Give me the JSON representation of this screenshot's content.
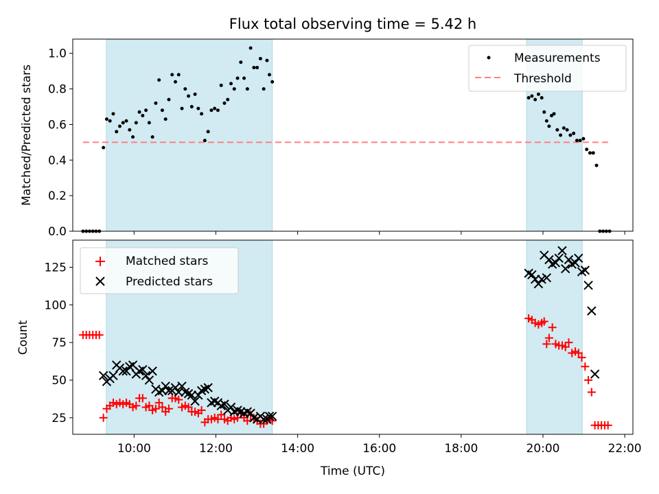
{
  "title": "Flux total observing time = 5.42 h",
  "xlabel": "Time (UTC)",
  "xticks": [
    "10:00",
    "12:00",
    "14:00",
    "16:00",
    "18:00",
    "20:00",
    "22:00"
  ],
  "colors": {
    "band": "#add8e6",
    "threshold": "#ff7f7f",
    "matched": "#ff0000",
    "predicted": "#000000",
    "measurements": "#000000"
  },
  "chart_data": [
    {
      "type": "scatter",
      "ylabel": "Matched/Predicted stars",
      "xlim": [
        8.5,
        22.2
      ],
      "ylim": [
        0,
        1.08
      ],
      "yticks": [
        "0.0",
        "0.2",
        "0.4",
        "0.6",
        "0.8",
        "1.0"
      ],
      "shaded_intervals": [
        [
          9.32,
          13.38
        ],
        [
          19.6,
          20.96
        ]
      ],
      "threshold": {
        "name": "Threshold",
        "y": 0.5,
        "x_range": [
          8.75,
          21.65
        ]
      },
      "legend": {
        "position": "upper right",
        "entries": [
          "Measurements",
          "Threshold"
        ]
      },
      "series": [
        {
          "name": "Measurements",
          "points": [
            [
              8.75,
              0
            ],
            [
              8.83,
              0
            ],
            [
              8.91,
              0
            ],
            [
              8.99,
              0
            ],
            [
              9.07,
              0
            ],
            [
              9.15,
              0
            ],
            [
              9.25,
              0.47
            ],
            [
              9.33,
              0.63
            ],
            [
              9.41,
              0.62
            ],
            [
              9.49,
              0.66
            ],
            [
              9.57,
              0.56
            ],
            [
              9.65,
              0.59
            ],
            [
              9.73,
              0.61
            ],
            [
              9.81,
              0.62
            ],
            [
              9.89,
              0.57
            ],
            [
              9.97,
              0.53
            ],
            [
              10.05,
              0.61
            ],
            [
              10.13,
              0.67
            ],
            [
              10.21,
              0.65
            ],
            [
              10.29,
              0.68
            ],
            [
              10.37,
              0.61
            ],
            [
              10.45,
              0.53
            ],
            [
              10.53,
              0.72
            ],
            [
              10.61,
              0.85
            ],
            [
              10.69,
              0.68
            ],
            [
              10.77,
              0.63
            ],
            [
              10.85,
              0.74
            ],
            [
              10.93,
              0.88
            ],
            [
              11.01,
              0.84
            ],
            [
              11.09,
              0.88
            ],
            [
              11.17,
              0.69
            ],
            [
              11.25,
              0.8
            ],
            [
              11.33,
              0.76
            ],
            [
              11.41,
              0.7
            ],
            [
              11.49,
              0.77
            ],
            [
              11.57,
              0.69
            ],
            [
              11.65,
              0.66
            ],
            [
              11.73,
              0.51
            ],
            [
              11.81,
              0.56
            ],
            [
              11.89,
              0.68
            ],
            [
              11.97,
              0.69
            ],
            [
              12.05,
              0.68
            ],
            [
              12.13,
              0.82
            ],
            [
              12.21,
              0.72
            ],
            [
              12.29,
              0.74
            ],
            [
              12.37,
              0.83
            ],
            [
              12.45,
              0.8
            ],
            [
              12.53,
              0.86
            ],
            [
              12.61,
              0.95
            ],
            [
              12.69,
              0.86
            ],
            [
              12.77,
              0.8
            ],
            [
              12.85,
              1.03
            ],
            [
              12.93,
              0.92
            ],
            [
              13.01,
              0.92
            ],
            [
              13.09,
              0.97
            ],
            [
              13.17,
              0.8
            ],
            [
              13.25,
              0.96
            ],
            [
              13.31,
              0.88
            ],
            [
              13.38,
              0.84
            ],
            [
              19.65,
              0.75
            ],
            [
              19.73,
              0.76
            ],
            [
              19.81,
              0.74
            ],
            [
              19.89,
              0.77
            ],
            [
              19.97,
              0.75
            ],
            [
              20.03,
              0.67
            ],
            [
              20.09,
              0.62
            ],
            [
              20.15,
              0.59
            ],
            [
              20.21,
              0.65
            ],
            [
              20.27,
              0.66
            ],
            [
              20.35,
              0.57
            ],
            [
              20.43,
              0.54
            ],
            [
              20.51,
              0.58
            ],
            [
              20.59,
              0.57
            ],
            [
              20.67,
              0.54
            ],
            [
              20.75,
              0.55
            ],
            [
              20.83,
              0.51
            ],
            [
              20.91,
              0.51
            ],
            [
              20.99,
              0.52
            ],
            [
              21.07,
              0.46
            ],
            [
              21.15,
              0.44
            ],
            [
              21.23,
              0.44
            ],
            [
              21.31,
              0.37
            ],
            [
              21.39,
              0
            ],
            [
              21.47,
              0
            ],
            [
              21.55,
              0
            ],
            [
              21.63,
              0
            ]
          ]
        }
      ]
    },
    {
      "type": "scatter",
      "ylabel": "Count",
      "xlim": [
        8.5,
        22.2
      ],
      "ylim": [
        14,
        143
      ],
      "yticks": [
        "25",
        "50",
        "75",
        "100",
        "125"
      ],
      "shaded_intervals": [
        [
          9.32,
          13.38
        ],
        [
          19.6,
          20.96
        ]
      ],
      "legend": {
        "position": "upper left",
        "entries": [
          "Matched stars",
          "Predicted stars"
        ]
      },
      "series": [
        {
          "name": "Matched stars",
          "marker": "plus",
          "points": [
            [
              8.75,
              80
            ],
            [
              8.83,
              80
            ],
            [
              8.91,
              80
            ],
            [
              8.99,
              80
            ],
            [
              9.07,
              80
            ],
            [
              9.15,
              80
            ],
            [
              9.25,
              25
            ],
            [
              9.33,
              31
            ],
            [
              9.41,
              33
            ],
            [
              9.49,
              35
            ],
            [
              9.57,
              34
            ],
            [
              9.65,
              35
            ],
            [
              9.73,
              34
            ],
            [
              9.81,
              35
            ],
            [
              9.89,
              34
            ],
            [
              9.97,
              32
            ],
            [
              10.05,
              33
            ],
            [
              10.13,
              38
            ],
            [
              10.21,
              38
            ],
            [
              10.29,
              32
            ],
            [
              10.37,
              33
            ],
            [
              10.45,
              30
            ],
            [
              10.53,
              31
            ],
            [
              10.61,
              35
            ],
            [
              10.69,
              32
            ],
            [
              10.77,
              29
            ],
            [
              10.85,
              31
            ],
            [
              10.93,
              38
            ],
            [
              11.01,
              38
            ],
            [
              11.09,
              37
            ],
            [
              11.17,
              32
            ],
            [
              11.25,
              33
            ],
            [
              11.33,
              32
            ],
            [
              11.41,
              29
            ],
            [
              11.49,
              29
            ],
            [
              11.57,
              28
            ],
            [
              11.65,
              30
            ],
            [
              11.73,
              22
            ],
            [
              11.81,
              24
            ],
            [
              11.89,
              24
            ],
            [
              11.97,
              25
            ],
            [
              12.05,
              24
            ],
            [
              12.13,
              27
            ],
            [
              12.21,
              24
            ],
            [
              12.29,
              23
            ],
            [
              12.37,
              25
            ],
            [
              12.45,
              24
            ],
            [
              12.53,
              25
            ],
            [
              12.61,
              28
            ],
            [
              12.69,
              25
            ],
            [
              12.77,
              23
            ],
            [
              12.85,
              27
            ],
            [
              12.93,
              24
            ],
            [
              13.01,
              23
            ],
            [
              13.09,
              21
            ],
            [
              13.17,
              21
            ],
            [
              13.25,
              23
            ],
            [
              13.31,
              24
            ],
            [
              13.38,
              23
            ],
            [
              19.65,
              91
            ],
            [
              19.73,
              90
            ],
            [
              19.81,
              88
            ],
            [
              19.89,
              87
            ],
            [
              19.97,
              88
            ],
            [
              20.03,
              89
            ],
            [
              20.09,
              74
            ],
            [
              20.15,
              78
            ],
            [
              20.23,
              85
            ],
            [
              20.31,
              74
            ],
            [
              20.39,
              73
            ],
            [
              20.47,
              73
            ],
            [
              20.55,
              72
            ],
            [
              20.63,
              75
            ],
            [
              20.71,
              68
            ],
            [
              20.79,
              69
            ],
            [
              20.87,
              68
            ],
            [
              20.95,
              65
            ],
            [
              21.03,
              59
            ],
            [
              21.11,
              50
            ],
            [
              21.19,
              42
            ],
            [
              21.27,
              20
            ],
            [
              21.35,
              20
            ],
            [
              21.43,
              20
            ],
            [
              21.51,
              20
            ],
            [
              21.59,
              20
            ]
          ]
        },
        {
          "name": "Predicted stars",
          "marker": "x",
          "points": [
            [
              9.25,
              53
            ],
            [
              9.33,
              49
            ],
            [
              9.41,
              51
            ],
            [
              9.49,
              53
            ],
            [
              9.57,
              60
            ],
            [
              9.65,
              58
            ],
            [
              9.73,
              56
            ],
            [
              9.81,
              56
            ],
            [
              9.89,
              59
            ],
            [
              9.97,
              60
            ],
            [
              10.05,
              54
            ],
            [
              10.13,
              56
            ],
            [
              10.21,
              57
            ],
            [
              10.29,
              53
            ],
            [
              10.37,
              50
            ],
            [
              10.45,
              56
            ],
            [
              10.53,
              44
            ],
            [
              10.61,
              42
            ],
            [
              10.69,
              43
            ],
            [
              10.77,
              46
            ],
            [
              10.85,
              43
            ],
            [
              10.93,
              43
            ],
            [
              11.01,
              45
            ],
            [
              11.09,
              42
            ],
            [
              11.17,
              46
            ],
            [
              11.25,
              42
            ],
            [
              11.33,
              41
            ],
            [
              11.41,
              40
            ],
            [
              11.49,
              36
            ],
            [
              11.57,
              40
            ],
            [
              11.65,
              43
            ],
            [
              11.73,
              44
            ],
            [
              11.81,
              45
            ],
            [
              11.89,
              35
            ],
            [
              11.97,
              36
            ],
            [
              12.05,
              35
            ],
            [
              12.13,
              33
            ],
            [
              12.21,
              34
            ],
            [
              12.29,
              30
            ],
            [
              12.37,
              32
            ],
            [
              12.45,
              29
            ],
            [
              12.53,
              30
            ],
            [
              12.61,
              29
            ],
            [
              12.69,
              28
            ],
            [
              12.77,
              29
            ],
            [
              12.85,
              28
            ],
            [
              12.93,
              25
            ],
            [
              13.01,
              24
            ],
            [
              13.09,
              26
            ],
            [
              13.17,
              24
            ],
            [
              13.25,
              24
            ],
            [
              13.31,
              26
            ],
            [
              13.38,
              26
            ],
            [
              19.65,
              121
            ],
            [
              19.73,
              120
            ],
            [
              19.81,
              117
            ],
            [
              19.89,
              114
            ],
            [
              19.97,
              117
            ],
            [
              20.03,
              133
            ],
            [
              20.09,
              118
            ],
            [
              20.15,
              130
            ],
            [
              20.23,
              127
            ],
            [
              20.31,
              128
            ],
            [
              20.39,
              131
            ],
            [
              20.47,
              136
            ],
            [
              20.55,
              124
            ],
            [
              20.63,
              130
            ],
            [
              20.71,
              127
            ],
            [
              20.79,
              128
            ],
            [
              20.87,
              131
            ],
            [
              20.95,
              122
            ],
            [
              21.03,
              123
            ],
            [
              21.11,
              113
            ],
            [
              21.19,
              96
            ],
            [
              21.27,
              54
            ]
          ]
        }
      ]
    }
  ]
}
